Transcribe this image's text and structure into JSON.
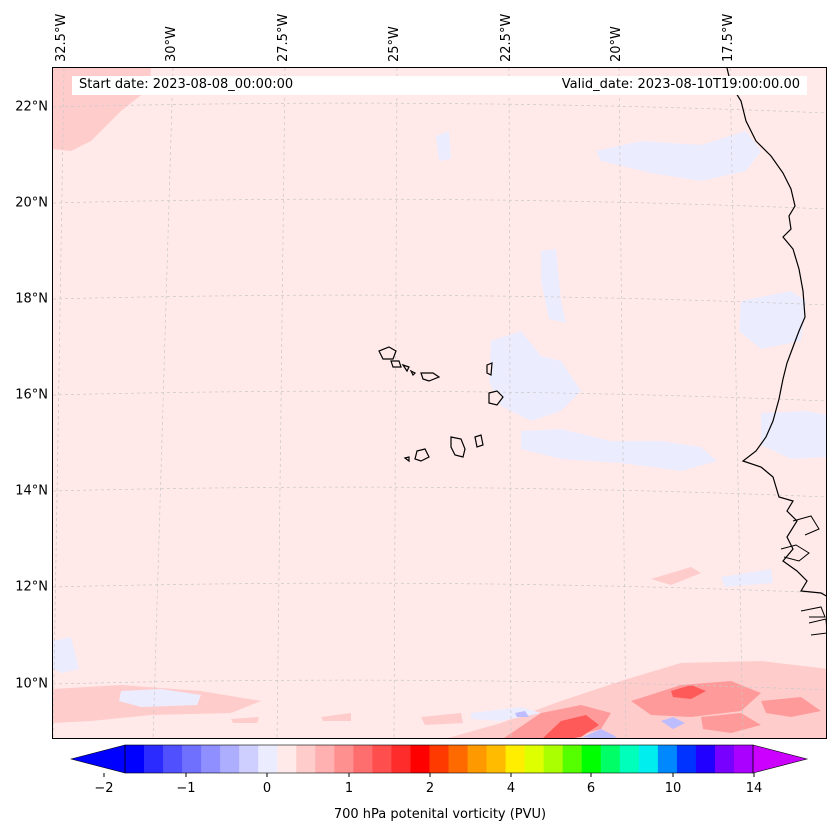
{
  "info": {
    "start_date": "Start date: 2023-08-08_00:00:00",
    "valid_date": "Valid_date: 2023-08-10T19:00:00.00"
  },
  "longitude_labels": [
    "32.5°W",
    "30°W",
    "27.5°W",
    "25°W",
    "22.5°W",
    "20°W",
    "17.5°W"
  ],
  "latitude_labels": [
    "22°N",
    "20°N",
    "18°N",
    "16°N",
    "14°N",
    "12°N",
    "10°N"
  ],
  "colorbar": {
    "label": "700 hPa potenital vorticity (PVU)",
    "tick_labels": [
      "−2",
      "−1",
      "0",
      "1",
      "2",
      "4",
      "6",
      "10",
      "14"
    ],
    "colors": [
      "#0000ff",
      "#2b2bff",
      "#5050ff",
      "#7070ff",
      "#8f8fff",
      "#aeaeff",
      "#cfcfff",
      "#ececff",
      "#ffe9e9",
      "#ffcccc",
      "#ffb0b0",
      "#ff9090",
      "#ff6e6e",
      "#ff4e4e",
      "#ff2c2c",
      "#ff0000",
      "#ff3a00",
      "#ff6a00",
      "#ff9900",
      "#ffbb00",
      "#ffee00",
      "#ddff00",
      "#aaff00",
      "#55ff00",
      "#00ff00",
      "#00ff66",
      "#00ffbb",
      "#00eeee",
      "#0088ff",
      "#0033ff",
      "#2200ff",
      "#7700ff",
      "#aa00ff"
    ],
    "under_color": "#0000ff",
    "over_color": "#cc00ff"
  },
  "map_colors": {
    "background": "#ffe9e9",
    "light_red": "#ffcccc",
    "medium_red": "#ff9a9a",
    "strong_red": "#ff5a5a",
    "light_blue": "#ececff",
    "medium_blue": "#bcbcff",
    "coastline": "#000000"
  }
}
